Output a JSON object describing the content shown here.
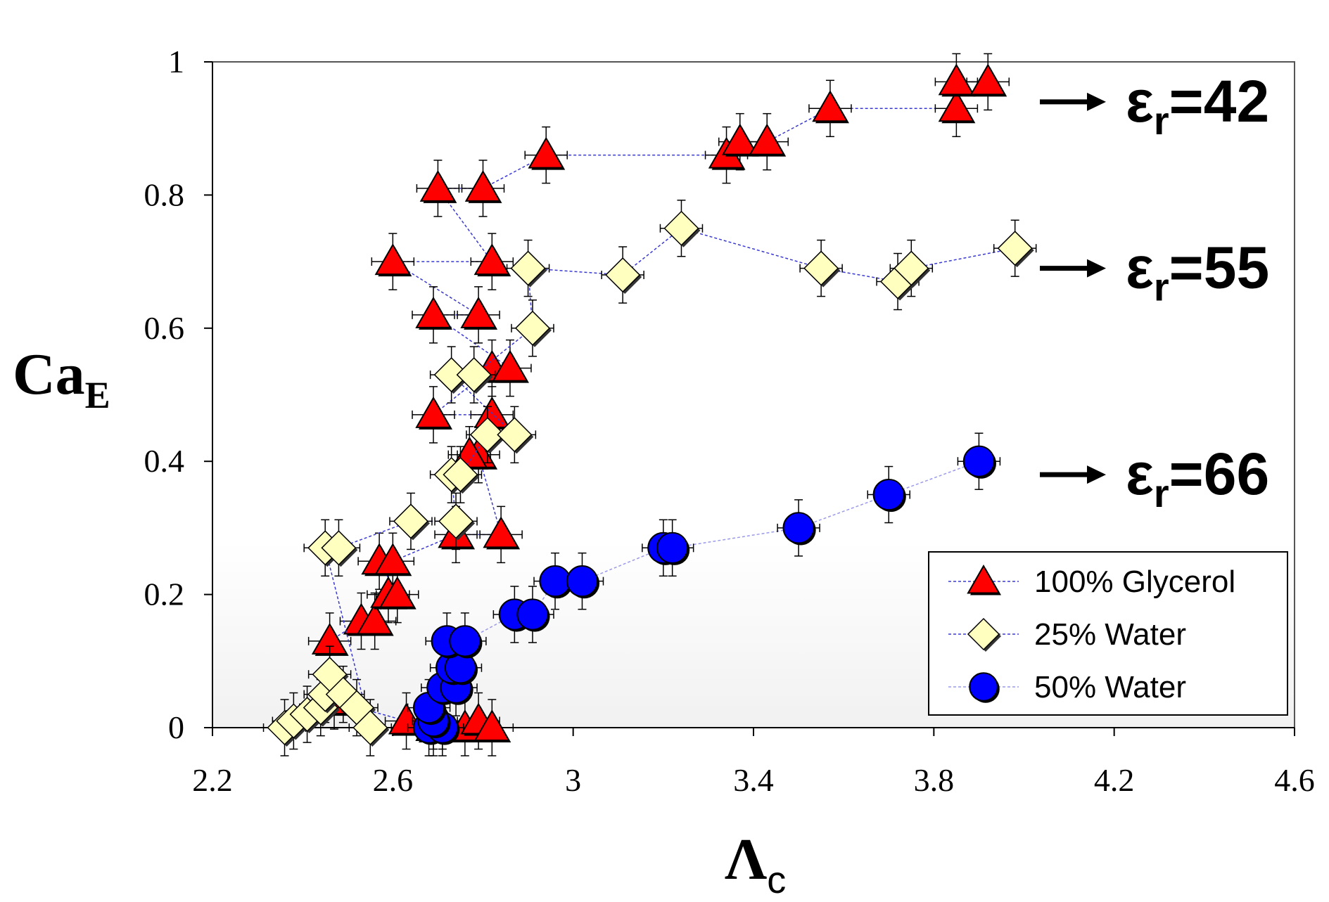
{
  "chart_data": {
    "type": "scatter",
    "xlabel": {
      "main": "Λ",
      "sub": "c"
    },
    "ylabel": {
      "main": "Ca",
      "sub": "E"
    },
    "xlim": [
      2.2,
      4.6
    ],
    "ylim": [
      0,
      1
    ],
    "xticks": [
      "2.2",
      "2.6",
      "3",
      "3.4",
      "3.8",
      "4.2",
      "4.6"
    ],
    "yticks": [
      "0",
      "0.2",
      "0.4",
      "0.6",
      "0.8",
      "1"
    ],
    "legend_position": "bottom-right",
    "series": [
      {
        "name": "100% Glycerol",
        "marker": "triangle",
        "color": "#ff0000",
        "line_color": "#3a3ad0",
        "points": [
          {
            "x": 2.69,
            "y": 0.0
          },
          {
            "x": 2.71,
            "y": 0.01
          },
          {
            "x": 2.76,
            "y": 0.0
          },
          {
            "x": 2.79,
            "y": 0.01
          },
          {
            "x": 2.82,
            "y": 0.0
          },
          {
            "x": 2.63,
            "y": 0.01
          },
          {
            "x": 2.47,
            "y": 0.04
          },
          {
            "x": 2.46,
            "y": 0.13
          },
          {
            "x": 2.53,
            "y": 0.16
          },
          {
            "x": 2.56,
            "y": 0.16
          },
          {
            "x": 2.59,
            "y": 0.2
          },
          {
            "x": 2.61,
            "y": 0.2
          },
          {
            "x": 2.57,
            "y": 0.25
          },
          {
            "x": 2.6,
            "y": 0.25
          },
          {
            "x": 2.74,
            "y": 0.29
          },
          {
            "x": 2.84,
            "y": 0.29
          },
          {
            "x": 2.79,
            "y": 0.41
          },
          {
            "x": 2.77,
            "y": 0.41
          },
          {
            "x": 2.82,
            "y": 0.47
          },
          {
            "x": 2.69,
            "y": 0.47
          },
          {
            "x": 2.82,
            "y": 0.54
          },
          {
            "x": 2.86,
            "y": 0.54
          },
          {
            "x": 2.69,
            "y": 0.62
          },
          {
            "x": 2.79,
            "y": 0.62
          },
          {
            "x": 2.6,
            "y": 0.7
          },
          {
            "x": 2.82,
            "y": 0.7
          },
          {
            "x": 2.7,
            "y": 0.81
          },
          {
            "x": 2.8,
            "y": 0.81
          },
          {
            "x": 2.94,
            "y": 0.86
          },
          {
            "x": 3.34,
            "y": 0.86
          },
          {
            "x": 3.37,
            "y": 0.88
          },
          {
            "x": 3.43,
            "y": 0.88
          },
          {
            "x": 3.57,
            "y": 0.93
          },
          {
            "x": 3.85,
            "y": 0.93
          },
          {
            "x": 3.85,
            "y": 0.97
          },
          {
            "x": 3.92,
            "y": 0.97
          }
        ]
      },
      {
        "name": "25% Water",
        "marker": "diamond",
        "color": "#ffffc0",
        "line_color": "#3a3ad0",
        "points": [
          {
            "x": 2.36,
            "y": 0.0
          },
          {
            "x": 2.38,
            "y": 0.01
          },
          {
            "x": 2.41,
            "y": 0.02
          },
          {
            "x": 2.44,
            "y": 0.03
          },
          {
            "x": 2.45,
            "y": 0.05
          },
          {
            "x": 2.46,
            "y": 0.08
          },
          {
            "x": 2.49,
            "y": 0.05
          },
          {
            "x": 2.52,
            "y": 0.03
          },
          {
            "x": 2.55,
            "y": 0.0
          },
          {
            "x": 2.45,
            "y": 0.27
          },
          {
            "x": 2.48,
            "y": 0.27
          },
          {
            "x": 2.64,
            "y": 0.31
          },
          {
            "x": 2.74,
            "y": 0.31
          },
          {
            "x": 2.73,
            "y": 0.38
          },
          {
            "x": 2.75,
            "y": 0.38
          },
          {
            "x": 2.81,
            "y": 0.44
          },
          {
            "x": 2.87,
            "y": 0.44
          },
          {
            "x": 2.73,
            "y": 0.53
          },
          {
            "x": 2.78,
            "y": 0.53
          },
          {
            "x": 2.91,
            "y": 0.6
          },
          {
            "x": 2.9,
            "y": 0.69
          },
          {
            "x": 3.11,
            "y": 0.68
          },
          {
            "x": 3.24,
            "y": 0.75
          },
          {
            "x": 3.55,
            "y": 0.69
          },
          {
            "x": 3.72,
            "y": 0.67
          },
          {
            "x": 3.75,
            "y": 0.69
          },
          {
            "x": 3.98,
            "y": 0.72
          }
        ]
      },
      {
        "name": "50% Water",
        "marker": "circle",
        "color": "#0000ff",
        "line_color": "#9a9ae8",
        "points": [
          {
            "x": 2.68,
            "y": 0.0
          },
          {
            "x": 2.71,
            "y": 0.0
          },
          {
            "x": 2.69,
            "y": 0.01
          },
          {
            "x": 2.68,
            "y": 0.03
          },
          {
            "x": 2.71,
            "y": 0.06
          },
          {
            "x": 2.74,
            "y": 0.06
          },
          {
            "x": 2.73,
            "y": 0.09
          },
          {
            "x": 2.75,
            "y": 0.09
          },
          {
            "x": 2.72,
            "y": 0.13
          },
          {
            "x": 2.76,
            "y": 0.13
          },
          {
            "x": 2.87,
            "y": 0.17
          },
          {
            "x": 2.91,
            "y": 0.17
          },
          {
            "x": 2.96,
            "y": 0.22
          },
          {
            "x": 3.02,
            "y": 0.22
          },
          {
            "x": 3.2,
            "y": 0.27
          },
          {
            "x": 3.22,
            "y": 0.27
          },
          {
            "x": 3.5,
            "y": 0.3
          },
          {
            "x": 3.7,
            "y": 0.35
          },
          {
            "x": 3.9,
            "y": 0.4
          }
        ]
      }
    ],
    "annotations": [
      {
        "label_main": "ε",
        "label_sub": "r",
        "label_rest": "=42",
        "y": 0.94
      },
      {
        "label_main": "ε",
        "label_sub": "r",
        "label_rest": "=55",
        "y": 0.69
      },
      {
        "label_main": "ε",
        "label_sub": "r",
        "label_rest": "=66",
        "y": 0.38
      }
    ]
  }
}
